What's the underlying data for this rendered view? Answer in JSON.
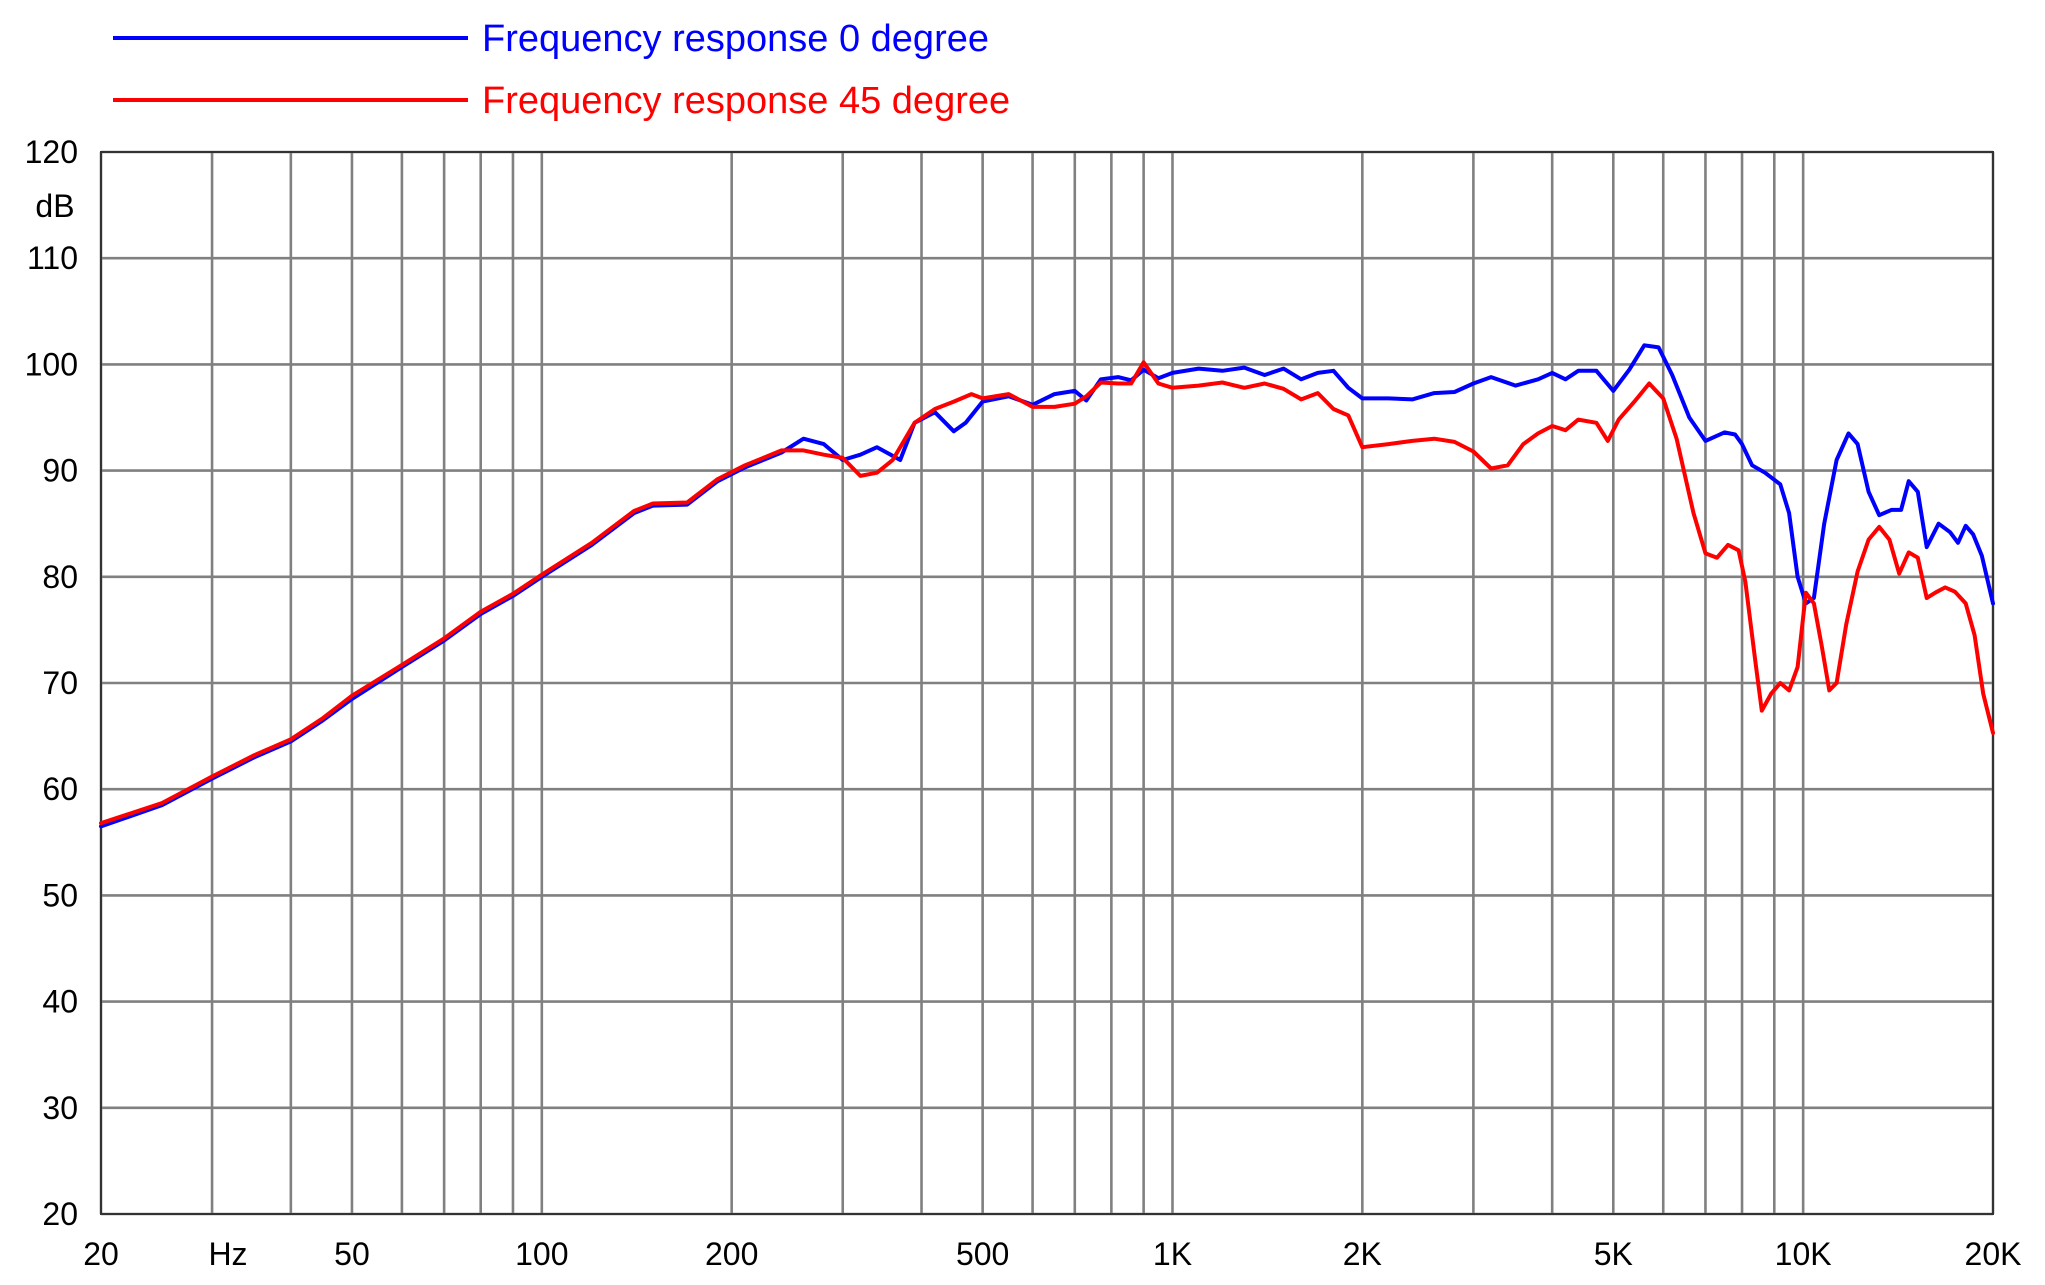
{
  "chart_data": {
    "type": "line",
    "title": "",
    "xlabel": "Hz",
    "ylabel": "dB",
    "x_scale": "log",
    "xlim": [
      20,
      20000
    ],
    "ylim": [
      20,
      120
    ],
    "grid": true,
    "legend_position": "top-left",
    "x_tick_labels": [
      {
        "value": 20,
        "label": "20"
      },
      {
        "value": 50,
        "label": "50"
      },
      {
        "value": 100,
        "label": "100"
      },
      {
        "value": 200,
        "label": "200"
      },
      {
        "value": 500,
        "label": "500"
      },
      {
        "value": 1000,
        "label": "1K"
      },
      {
        "value": 2000,
        "label": "2K"
      },
      {
        "value": 5000,
        "label": "5K"
      },
      {
        "value": 10000,
        "label": "10K"
      },
      {
        "value": 20000,
        "label": "20K"
      }
    ],
    "x_gridlines": [
      20,
      30,
      40,
      50,
      60,
      70,
      80,
      90,
      100,
      200,
      300,
      400,
      500,
      600,
      700,
      800,
      900,
      1000,
      2000,
      3000,
      4000,
      5000,
      6000,
      7000,
      8000,
      9000,
      10000,
      20000
    ],
    "y_ticks": [
      20,
      30,
      40,
      50,
      60,
      70,
      80,
      90,
      100,
      110,
      120
    ],
    "series": [
      {
        "name": "Frequency response 0 degree",
        "color": "#0000ff",
        "points": [
          [
            20,
            56.5
          ],
          [
            25,
            58.5
          ],
          [
            30,
            61
          ],
          [
            35,
            63
          ],
          [
            40,
            64.5
          ],
          [
            45,
            66.5
          ],
          [
            50,
            68.5
          ],
          [
            60,
            71.5
          ],
          [
            70,
            74
          ],
          [
            80,
            76.5
          ],
          [
            90,
            78.2
          ],
          [
            100,
            80
          ],
          [
            120,
            83
          ],
          [
            140,
            86
          ],
          [
            150,
            86.7
          ],
          [
            170,
            86.8
          ],
          [
            190,
            89
          ],
          [
            210,
            90.3
          ],
          [
            240,
            91.7
          ],
          [
            260,
            93
          ],
          [
            280,
            92.5
          ],
          [
            300,
            91
          ],
          [
            320,
            91.5
          ],
          [
            340,
            92.2
          ],
          [
            370,
            91
          ],
          [
            390,
            94.5
          ],
          [
            420,
            95.5
          ],
          [
            450,
            93.7
          ],
          [
            470,
            94.5
          ],
          [
            500,
            96.5
          ],
          [
            550,
            97
          ],
          [
            600,
            96.2
          ],
          [
            650,
            97.2
          ],
          [
            700,
            97.5
          ],
          [
            730,
            96.6
          ],
          [
            770,
            98.6
          ],
          [
            820,
            98.8
          ],
          [
            860,
            98.5
          ],
          [
            900,
            99.5
          ],
          [
            950,
            98.7
          ],
          [
            1000,
            99.2
          ],
          [
            1100,
            99.6
          ],
          [
            1200,
            99.4
          ],
          [
            1300,
            99.7
          ],
          [
            1400,
            99
          ],
          [
            1500,
            99.6
          ],
          [
            1600,
            98.6
          ],
          [
            1700,
            99.2
          ],
          [
            1800,
            99.4
          ],
          [
            1900,
            97.8
          ],
          [
            2000,
            96.8
          ],
          [
            2200,
            96.8
          ],
          [
            2400,
            96.7
          ],
          [
            2600,
            97.3
          ],
          [
            2800,
            97.4
          ],
          [
            3000,
            98.2
          ],
          [
            3200,
            98.8
          ],
          [
            3500,
            98
          ],
          [
            3800,
            98.6
          ],
          [
            4000,
            99.2
          ],
          [
            4200,
            98.6
          ],
          [
            4400,
            99.4
          ],
          [
            4700,
            99.4
          ],
          [
            5000,
            97.5
          ],
          [
            5300,
            99.5
          ],
          [
            5600,
            101.8
          ],
          [
            5900,
            101.6
          ],
          [
            6200,
            99
          ],
          [
            6600,
            95
          ],
          [
            7000,
            92.8
          ],
          [
            7500,
            93.6
          ],
          [
            7800,
            93.4
          ],
          [
            8000,
            92.5
          ],
          [
            8300,
            90.5
          ],
          [
            8700,
            89.8
          ],
          [
            9200,
            88.7
          ],
          [
            9500,
            86
          ],
          [
            9800,
            80
          ],
          [
            10100,
            77.5
          ],
          [
            10400,
            78
          ],
          [
            10800,
            85
          ],
          [
            11300,
            91
          ],
          [
            11800,
            93.5
          ],
          [
            12200,
            92.5
          ],
          [
            12700,
            88
          ],
          [
            13200,
            85.8
          ],
          [
            13800,
            86.3
          ],
          [
            14300,
            86.3
          ],
          [
            14700,
            89
          ],
          [
            15200,
            88
          ],
          [
            15700,
            82.8
          ],
          [
            16400,
            85
          ],
          [
            17100,
            84.2
          ],
          [
            17600,
            83.2
          ],
          [
            18100,
            84.8
          ],
          [
            18600,
            84
          ],
          [
            19200,
            82
          ],
          [
            20000,
            77.5
          ]
        ]
      },
      {
        "name": "Frequency response 45 degree",
        "color": "#ff0000",
        "points": [
          [
            20,
            56.8
          ],
          [
            25,
            58.7
          ],
          [
            30,
            61.2
          ],
          [
            35,
            63.2
          ],
          [
            40,
            64.7
          ],
          [
            45,
            66.7
          ],
          [
            50,
            68.8
          ],
          [
            60,
            71.7
          ],
          [
            70,
            74.2
          ],
          [
            80,
            76.7
          ],
          [
            90,
            78.4
          ],
          [
            100,
            80.2
          ],
          [
            120,
            83.2
          ],
          [
            140,
            86.2
          ],
          [
            150,
            86.9
          ],
          [
            170,
            87
          ],
          [
            190,
            89.2
          ],
          [
            210,
            90.5
          ],
          [
            240,
            91.9
          ],
          [
            260,
            91.9
          ],
          [
            280,
            91.5
          ],
          [
            300,
            91.2
          ],
          [
            320,
            89.5
          ],
          [
            340,
            89.8
          ],
          [
            360,
            91
          ],
          [
            390,
            94.5
          ],
          [
            420,
            95.8
          ],
          [
            450,
            96.5
          ],
          [
            480,
            97.2
          ],
          [
            500,
            96.8
          ],
          [
            550,
            97.2
          ],
          [
            600,
            96
          ],
          [
            650,
            96
          ],
          [
            700,
            96.3
          ],
          [
            730,
            97
          ],
          [
            770,
            98.3
          ],
          [
            820,
            98.2
          ],
          [
            860,
            98.2
          ],
          [
            900,
            100.2
          ],
          [
            950,
            98.2
          ],
          [
            1000,
            97.8
          ],
          [
            1100,
            98
          ],
          [
            1200,
            98.3
          ],
          [
            1300,
            97.8
          ],
          [
            1400,
            98.2
          ],
          [
            1500,
            97.7
          ],
          [
            1600,
            96.7
          ],
          [
            1700,
            97.3
          ],
          [
            1800,
            95.8
          ],
          [
            1900,
            95.2
          ],
          [
            2000,
            92.2
          ],
          [
            2200,
            92.5
          ],
          [
            2400,
            92.8
          ],
          [
            2600,
            93
          ],
          [
            2800,
            92.7
          ],
          [
            3000,
            91.8
          ],
          [
            3200,
            90.2
          ],
          [
            3400,
            90.5
          ],
          [
            3600,
            92.5
          ],
          [
            3800,
            93.5
          ],
          [
            4000,
            94.2
          ],
          [
            4200,
            93.8
          ],
          [
            4400,
            94.8
          ],
          [
            4700,
            94.5
          ],
          [
            4900,
            92.8
          ],
          [
            5100,
            94.8
          ],
          [
            5400,
            96.5
          ],
          [
            5700,
            98.2
          ],
          [
            6000,
            96.8
          ],
          [
            6300,
            93
          ],
          [
            6700,
            86
          ],
          [
            7000,
            82.2
          ],
          [
            7300,
            81.8
          ],
          [
            7600,
            83
          ],
          [
            7900,
            82.5
          ],
          [
            8100,
            79.5
          ],
          [
            8400,
            72
          ],
          [
            8600,
            67.4
          ],
          [
            8900,
            69
          ],
          [
            9200,
            70
          ],
          [
            9500,
            69.3
          ],
          [
            9800,
            71.5
          ],
          [
            10100,
            78.5
          ],
          [
            10400,
            77.5
          ],
          [
            10700,
            73.5
          ],
          [
            11000,
            69.3
          ],
          [
            11300,
            70
          ],
          [
            11700,
            75.5
          ],
          [
            12200,
            80.5
          ],
          [
            12700,
            83.5
          ],
          [
            13200,
            84.7
          ],
          [
            13700,
            83.5
          ],
          [
            14200,
            80.3
          ],
          [
            14700,
            82.3
          ],
          [
            15200,
            81.8
          ],
          [
            15700,
            78
          ],
          [
            16200,
            78.5
          ],
          [
            16800,
            79
          ],
          [
            17400,
            78.6
          ],
          [
            18100,
            77.5
          ],
          [
            18700,
            74.5
          ],
          [
            19300,
            69
          ],
          [
            20000,
            65.3
          ]
        ]
      }
    ]
  }
}
